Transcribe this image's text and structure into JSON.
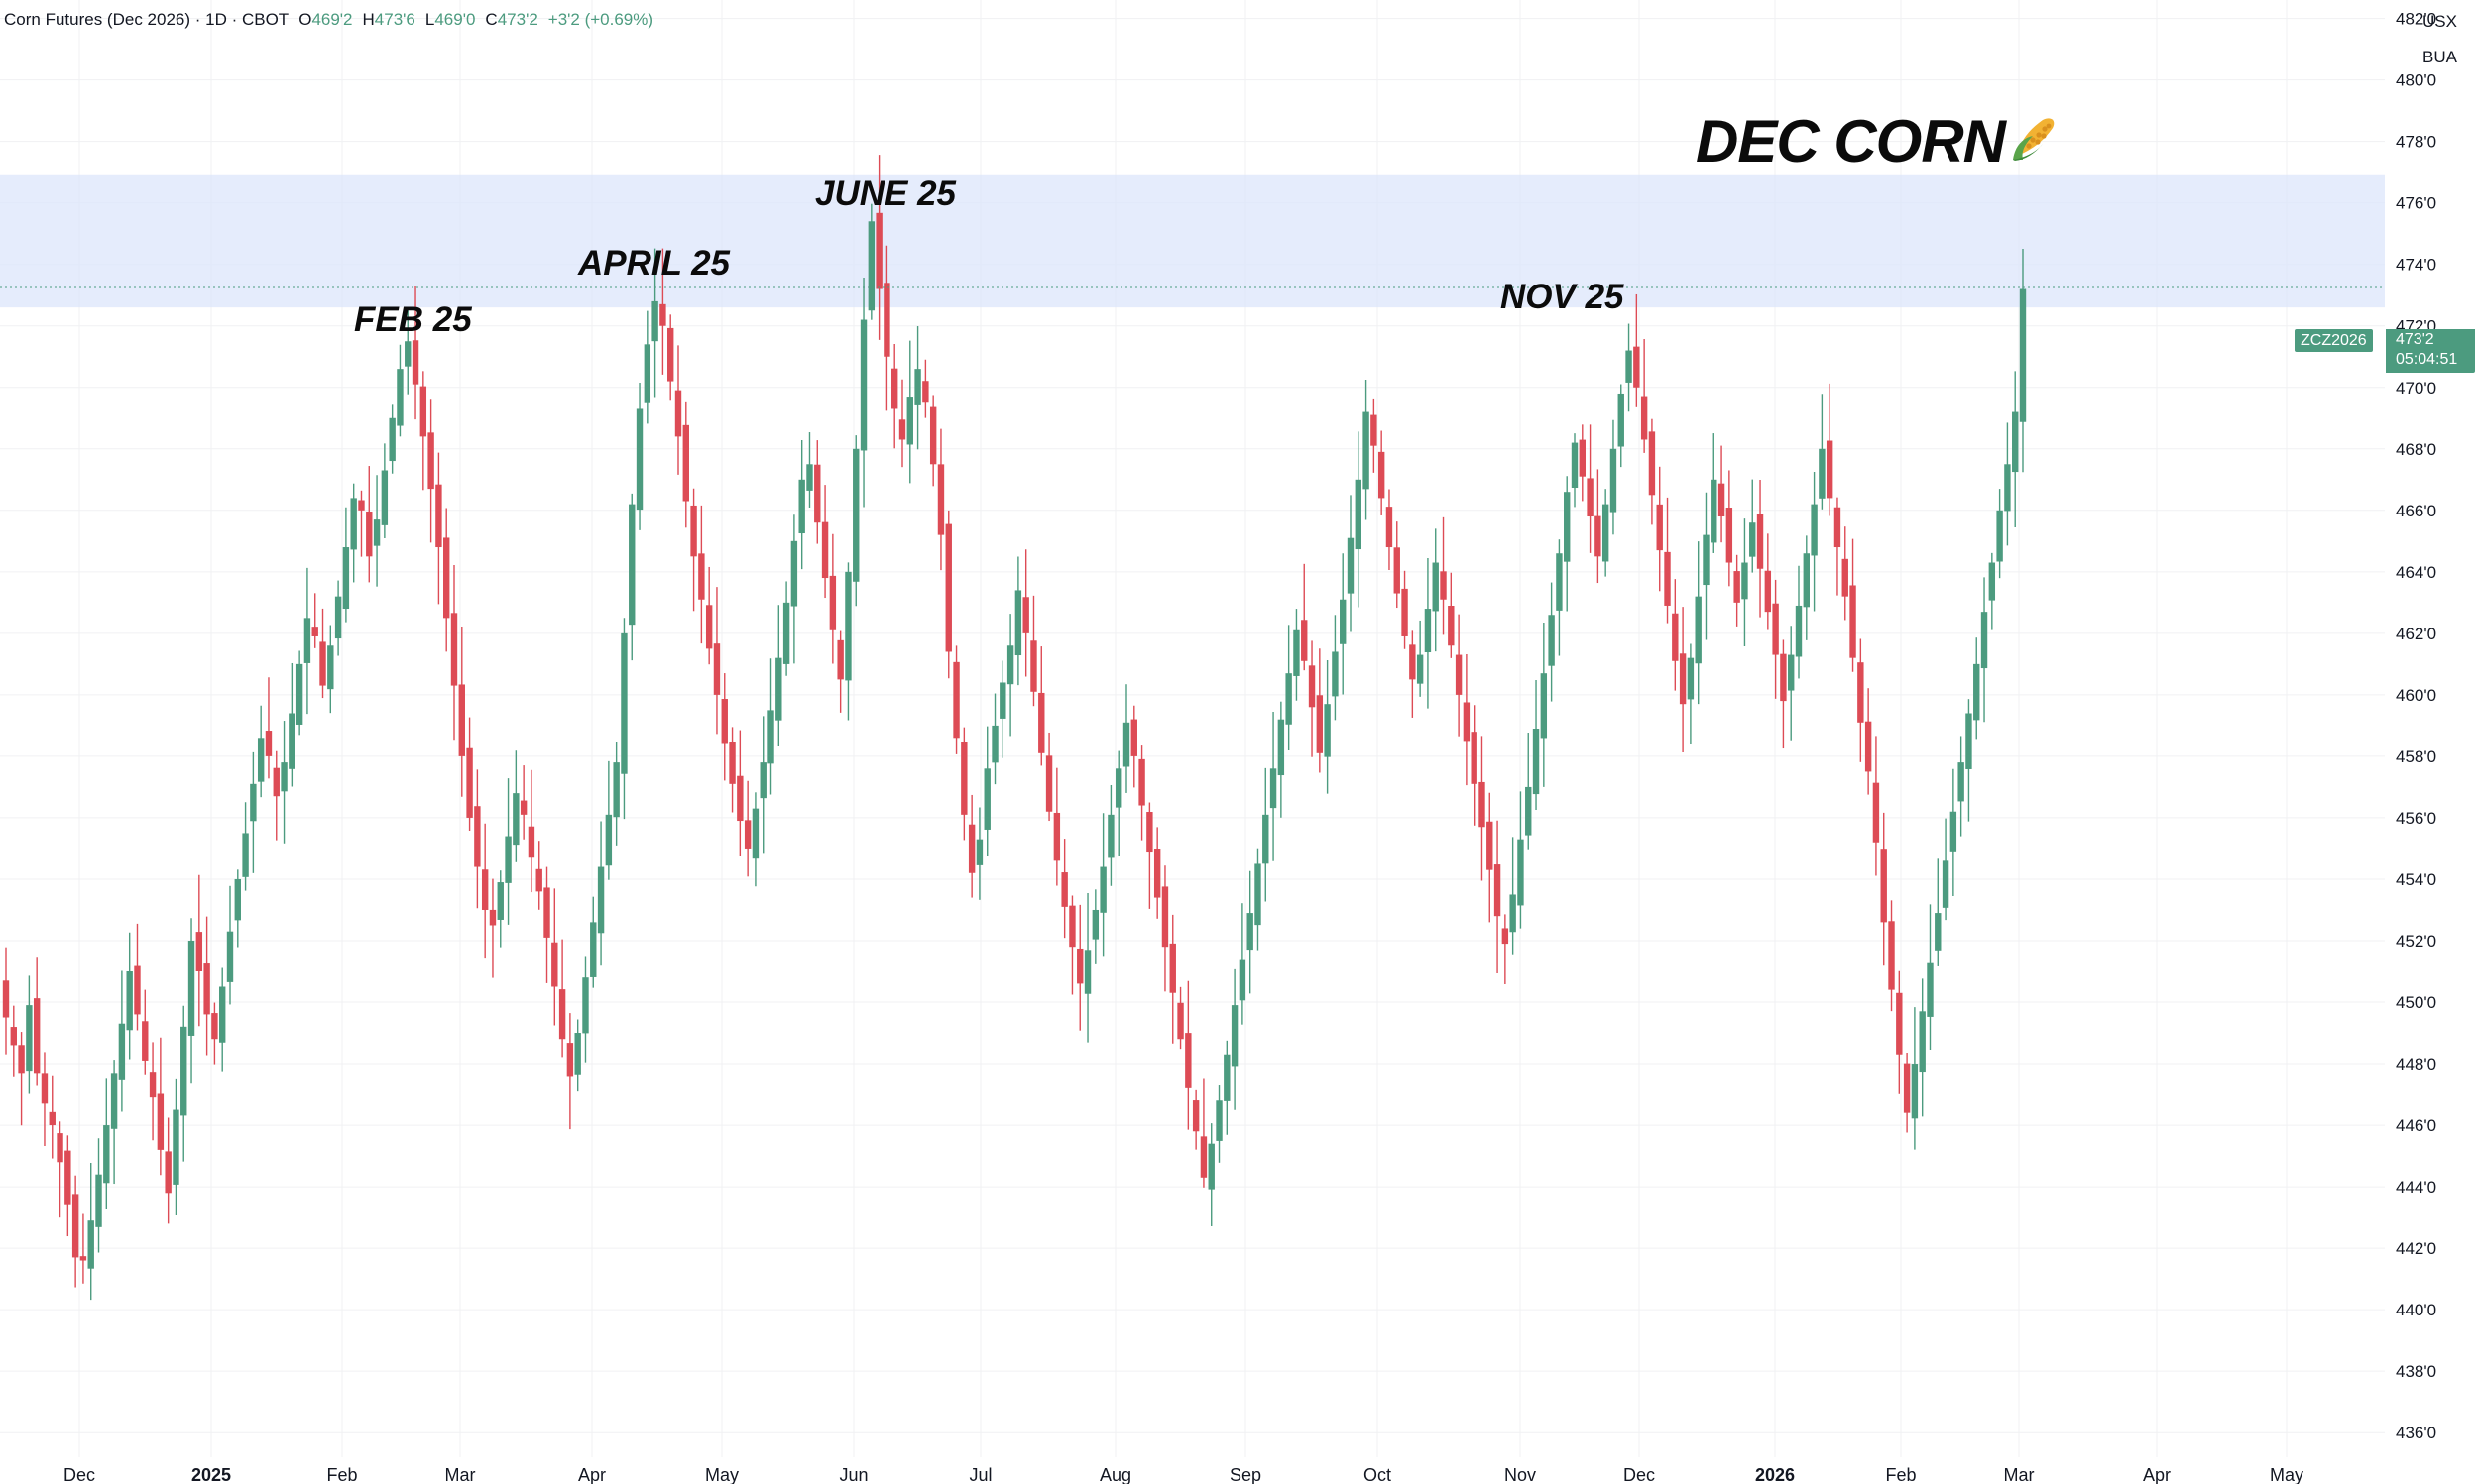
{
  "header": {
    "symbol_line": "Corn Futures (Dec 2026) · 1D · CBOT",
    "open_label": "O",
    "open_value": "469'2",
    "high_label": "H",
    "high_value": "473'6",
    "low_label": "L",
    "low_value": "469'0",
    "close_label": "C",
    "close_value": "473'2",
    "change": "+3'2 (+0.69%)"
  },
  "scale": {
    "currency": "USX",
    "unit": "BUA"
  },
  "title": "DEC CORN",
  "annotations": [
    "FEB 25",
    "APRIL 25",
    "JUNE 25",
    "NOV 25"
  ],
  "price_tag": {
    "symbol": "ZCZ2026",
    "price": "473'2",
    "countdown": "05:04:51"
  },
  "colors": {
    "up": "#4c9b7f",
    "down": "#dd4b55",
    "zone": "#dce6fb",
    "grid": "#f0f1f3"
  },
  "chart_data": {
    "type": "candlestick",
    "title": "DEC CORN",
    "xlabel": "",
    "ylabel": "",
    "ylim": [
      435.2,
      482.6
    ],
    "y_ticks": [
      "436'0",
      "438'0",
      "440'0",
      "442'0",
      "444'0",
      "446'0",
      "448'0",
      "450'0",
      "452'0",
      "454'0",
      "456'0",
      "458'0",
      "460'0",
      "462'0",
      "464'0",
      "466'0",
      "468'0",
      "470'0",
      "472'0",
      "474'0",
      "476'0",
      "478'0",
      "480'0",
      "482'0"
    ],
    "x_ticks": [
      "Dec",
      "2025",
      "Feb",
      "Mar",
      "Apr",
      "May",
      "Jun",
      "Jul",
      "Aug",
      "Sep",
      "Oct",
      "Nov",
      "Dec",
      "2026",
      "Feb",
      "Mar",
      "Apr",
      "May"
    ],
    "resistance_zone": [
      472.6,
      476.9
    ],
    "current_price": 473.25,
    "last_candle": {
      "open": 469.25,
      "high": 473.75,
      "low": 469.0,
      "close": 473.25
    },
    "grid": true,
    "approx_closes": [
      [
        449.5,
        448.6,
        447.7,
        449.9,
        447.7,
        446.7,
        446.0,
        444.8,
        443.4,
        441.7,
        441.6,
        442.9,
        444.4,
        446.0,
        447.7,
        449.3,
        451.0,
        449.6,
        448.1,
        446.9,
        445.2,
        443.8,
        446.5,
        449.2,
        452.0,
        451.0,
        449.6,
        448.8,
        450.5,
        452.3,
        454.0,
        455.5,
        457.1,
        458.6,
        458.0,
        456.7,
        457.8,
        459.4,
        461.0,
        462.5,
        461.9,
        460.3,
        461.6,
        463.2,
        464.8,
        466.4,
        466.0,
        464.5,
        465.7,
        467.3,
        469.0,
        470.6,
        471.5,
        470.1,
        468.4,
        466.7,
        464.8,
        462.5,
        460.3,
        458.0,
        456.0,
        454.4,
        453.0,
        452.5,
        453.9,
        455.4,
        456.8,
        456.1,
        454.7,
        453.6,
        452.1,
        450.5,
        448.8,
        447.6,
        449.0,
        450.8,
        452.6,
        454.4,
        456.1,
        457.8,
        462.0,
        466.2,
        469.3,
        471.4,
        472.8,
        472.0,
        470.2,
        468.4,
        466.3,
        464.5,
        463.1,
        461.5,
        460.0,
        458.4,
        457.1,
        455.9,
        455.0,
        456.3,
        457.8,
        459.5,
        461.2,
        463.0,
        465.0,
        467.0,
        467.5,
        465.6,
        463.8,
        462.1,
        460.5,
        464.0,
        468.0,
        472.2,
        475.4,
        473.2,
        471.0,
        469.3,
        468.3,
        469.7,
        470.6,
        469.5,
        467.5,
        465.2,
        461.4,
        458.6,
        456.1,
        454.2,
        455.3,
        457.6,
        459.0,
        460.4,
        461.6,
        463.4,
        462.0,
        460.1,
        458.1,
        456.2,
        454.6,
        453.1,
        451.8,
        450.6,
        451.7,
        453.0,
        454.4,
        456.1,
        457.6,
        459.1,
        458.0,
        456.4,
        454.9,
        453.4,
        451.8,
        450.3,
        448.8,
        447.2,
        445.8,
        444.3,
        445.4,
        446.8,
        448.3,
        449.9,
        451.4,
        452.9,
        454.5,
        456.1,
        457.6,
        459.2,
        460.7,
        462.1,
        461.1,
        459.6,
        458.1,
        459.7,
        461.4,
        463.1,
        465.1,
        467.0,
        469.2,
        468.1,
        466.4,
        464.8,
        463.3,
        461.9,
        460.5,
        461.3,
        462.8,
        464.3,
        463.1,
        461.6,
        460.0,
        458.5,
        457.1,
        455.7,
        454.3,
        452.8,
        451.9,
        453.5,
        455.3,
        457.0,
        458.9,
        460.7,
        462.6,
        464.6,
        466.6,
        468.2,
        467.1,
        465.8,
        464.5,
        466.2,
        468.0,
        469.8,
        471.2,
        470.0,
        468.3,
        466.5,
        464.7,
        462.9,
        461.1,
        459.7,
        461.2,
        463.2,
        465.2,
        467.0,
        465.8,
        464.3,
        463.0,
        464.3,
        465.6,
        464.1,
        462.7,
        461.3,
        459.8,
        461.3,
        462.9,
        464.6,
        466.2,
        468.0,
        466.4,
        464.8,
        463.2,
        461.2,
        459.1,
        457.5,
        455.2,
        452.6,
        450.4,
        448.3,
        446.4,
        448.0,
        449.7,
        451.3,
        452.9,
        454.6,
        456.2,
        457.8,
        459.4,
        461.0,
        462.7,
        464.3,
        466.0,
        467.5,
        469.2,
        473.2
      ]
    ]
  }
}
